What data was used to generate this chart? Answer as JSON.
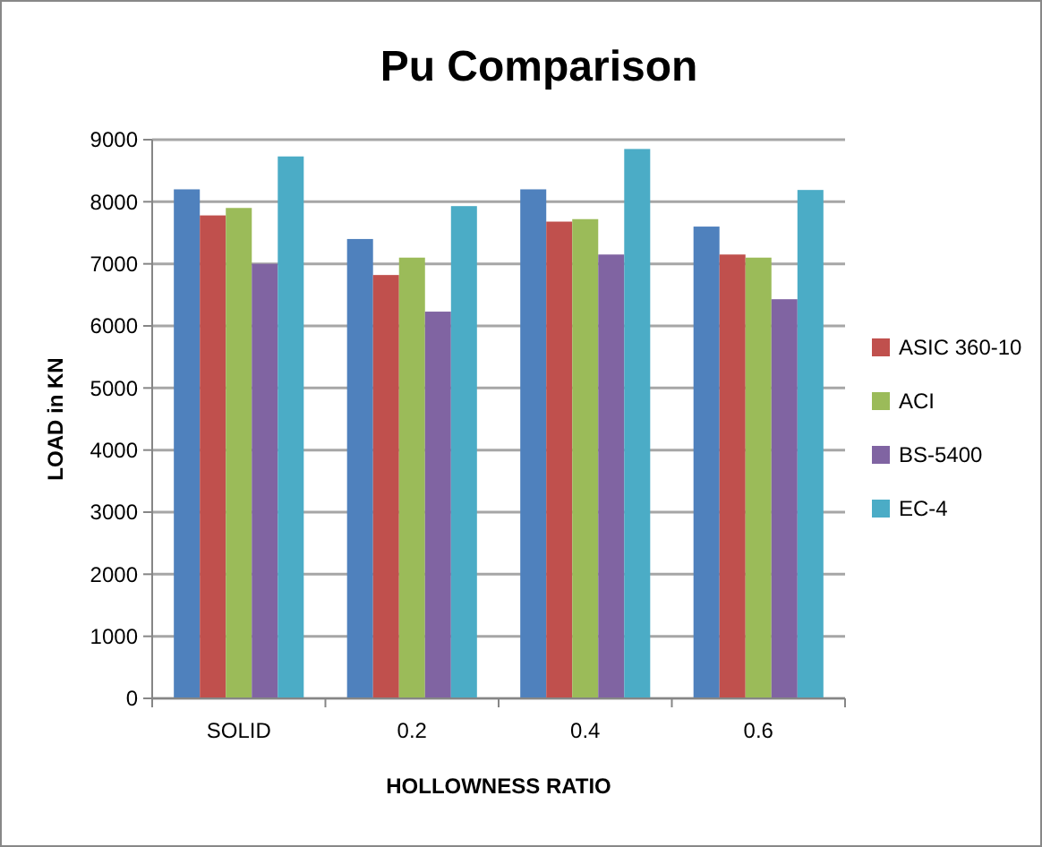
{
  "chart_data": {
    "type": "bar",
    "title": "Pu Comparison",
    "xlabel": "HOLLOWNESS RATIO",
    "ylabel": "LOAD in KN",
    "categories": [
      "SOLID",
      "0.2",
      "0.4",
      "0.6"
    ],
    "series": [
      {
        "color": "#4f81bd",
        "values": [
          8200,
          7400,
          8200,
          7600
        ]
      },
      {
        "name": "ASIC 360-10",
        "color": "#c0504d",
        "values": [
          7780,
          6820,
          7680,
          7150
        ]
      },
      {
        "name": "ACI",
        "color": "#9bbb59",
        "values": [
          7900,
          7100,
          7720,
          7100
        ]
      },
      {
        "name": "BS-5400",
        "color": "#8064a2",
        "values": [
          7000,
          6230,
          7150,
          6430
        ]
      },
      {
        "name": "EC-4",
        "color": "#4bacc6",
        "values": [
          8730,
          7930,
          8850,
          8190
        ]
      }
    ],
    "ylim": [
      0,
      9000
    ],
    "yticks": [
      0,
      1000,
      2000,
      3000,
      4000,
      5000,
      6000,
      7000,
      8000,
      9000
    ],
    "grid": "y",
    "legend": "right"
  }
}
